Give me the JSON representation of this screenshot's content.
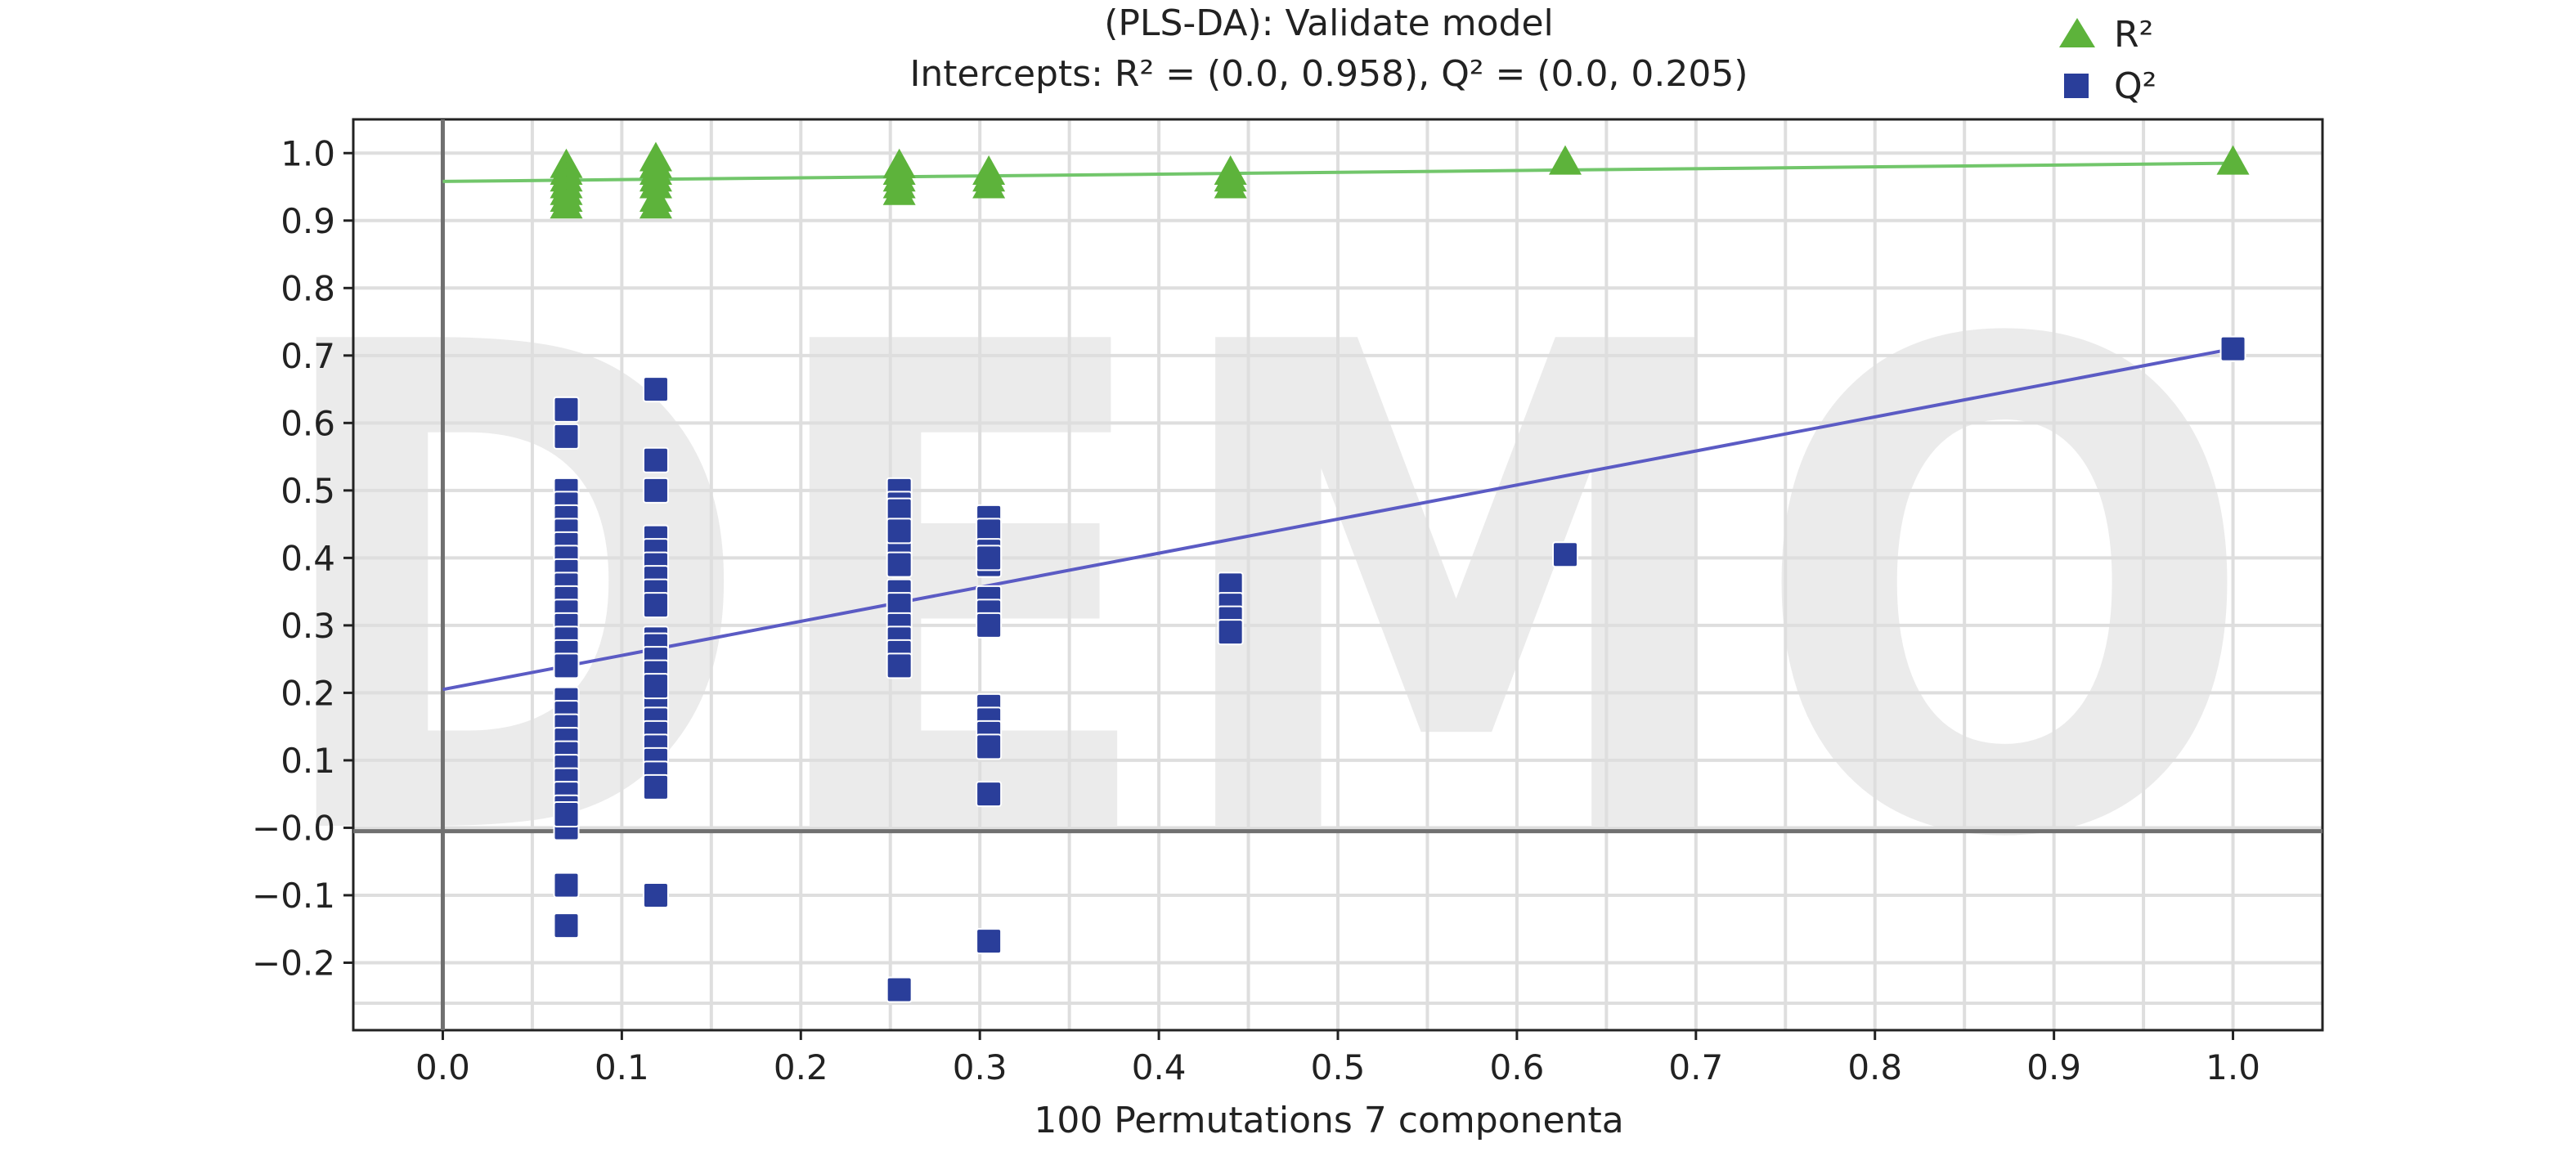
{
  "chart_data": {
    "type": "scatter",
    "title_line1": "(PLS-DA): Validate model",
    "title_line2": "Intercepts: R² = (0.0, 0.958), Q² = (0.0, 0.205)",
    "xlabel": "100 Permutations 7 componenta",
    "ylabel": "",
    "xlim": [
      -0.05,
      1.05
    ],
    "ylim": [
      -0.3,
      1.05
    ],
    "x_ticks": [
      "0.0",
      "0.1",
      "0.2",
      "0.3",
      "0.4",
      "0.5",
      "0.6",
      "0.7",
      "0.8",
      "0.9",
      "1.0"
    ],
    "x_tick_values": [
      0,
      0.1,
      0.2,
      0.3,
      0.4,
      0.5,
      0.6,
      0.7,
      0.8,
      0.9,
      1.0
    ],
    "y_ticks": [
      "1.0",
      "0.9",
      "0.8",
      "0.7",
      "0.6",
      "0.5",
      "0.4",
      "0.3",
      "0.2",
      "0.1",
      "−0.0",
      "−0.1",
      "−0.2"
    ],
    "y_tick_values": [
      1.0,
      0.9,
      0.8,
      0.7,
      0.6,
      0.5,
      0.4,
      0.3,
      0.2,
      0.1,
      0.0,
      -0.1,
      -0.2
    ],
    "grid": true,
    "legend_position": "top-right",
    "watermark": "DEMO",
    "series": [
      {
        "name": "R²",
        "marker": "triangle",
        "color": "#5db33b",
        "line_color": "#72c66b",
        "intercept": 0.958,
        "x": [
          0.069,
          0.069,
          0.069,
          0.069,
          0.069,
          0.069,
          0.069,
          0.119,
          0.119,
          0.119,
          0.119,
          0.119,
          0.119,
          0.119,
          0.255,
          0.255,
          0.255,
          0.255,
          0.255,
          0.305,
          0.305,
          0.305,
          0.44,
          0.44,
          0.44,
          0.627,
          1.0
        ],
        "y": [
          0.98,
          0.97,
          0.96,
          0.95,
          0.94,
          0.93,
          0.92,
          0.99,
          0.98,
          0.97,
          0.96,
          0.95,
          0.93,
          0.92,
          0.98,
          0.97,
          0.96,
          0.95,
          0.94,
          0.97,
          0.96,
          0.95,
          0.97,
          0.96,
          0.95,
          0.985,
          0.985
        ]
      },
      {
        "name": "Q²",
        "marker": "square",
        "color": "#2a3e9a",
        "line_color": "#5b5bc4",
        "intercept": 0.205,
        "x": [
          0.069,
          0.069,
          0.069,
          0.069,
          0.069,
          0.069,
          0.069,
          0.069,
          0.069,
          0.069,
          0.069,
          0.069,
          0.069,
          0.069,
          0.069,
          0.069,
          0.069,
          0.069,
          0.069,
          0.069,
          0.069,
          0.069,
          0.069,
          0.069,
          0.069,
          0.069,
          0.069,
          0.069,
          0.069,
          0.069,
          0.119,
          0.119,
          0.119,
          0.119,
          0.119,
          0.119,
          0.119,
          0.119,
          0.119,
          0.119,
          0.119,
          0.119,
          0.119,
          0.119,
          0.119,
          0.119,
          0.119,
          0.119,
          0.119,
          0.119,
          0.119,
          0.119,
          0.119,
          0.119,
          0.119,
          0.119,
          0.255,
          0.255,
          0.255,
          0.255,
          0.255,
          0.255,
          0.255,
          0.255,
          0.255,
          0.255,
          0.255,
          0.255,
          0.255,
          0.255,
          0.305,
          0.305,
          0.305,
          0.305,
          0.305,
          0.305,
          0.305,
          0.305,
          0.305,
          0.305,
          0.305,
          0.305,
          0.305,
          0.305,
          0.44,
          0.44,
          0.44,
          0.44,
          0.627,
          1.0
        ],
        "y": [
          0.62,
          0.58,
          0.5,
          0.48,
          0.46,
          0.44,
          0.42,
          0.4,
          0.38,
          0.36,
          0.34,
          0.32,
          0.3,
          0.28,
          0.26,
          0.24,
          0.19,
          0.17,
          0.15,
          0.13,
          0.11,
          0.09,
          0.07,
          0.05,
          0.03,
          0.01,
          -0.085,
          -0.145,
          0.0,
          0.02,
          0.65,
          0.545,
          0.5,
          0.43,
          0.41,
          0.39,
          0.37,
          0.35,
          0.33,
          0.28,
          0.26,
          0.24,
          0.22,
          0.2,
          0.18,
          0.16,
          0.14,
          0.12,
          0.1,
          0.08,
          0.06,
          -0.1,
          0.27,
          0.25,
          0.23,
          0.21,
          0.5,
          0.48,
          0.46,
          0.41,
          0.39,
          0.35,
          0.33,
          0.3,
          0.28,
          0.26,
          0.24,
          -0.24,
          0.47,
          0.44,
          0.46,
          0.44,
          0.41,
          0.39,
          0.34,
          0.32,
          0.3,
          0.18,
          0.16,
          0.14,
          0.12,
          0.05,
          -0.168,
          0.4,
          0.36,
          0.33,
          0.31,
          0.29,
          0.405,
          0.71
        ]
      }
    ]
  }
}
